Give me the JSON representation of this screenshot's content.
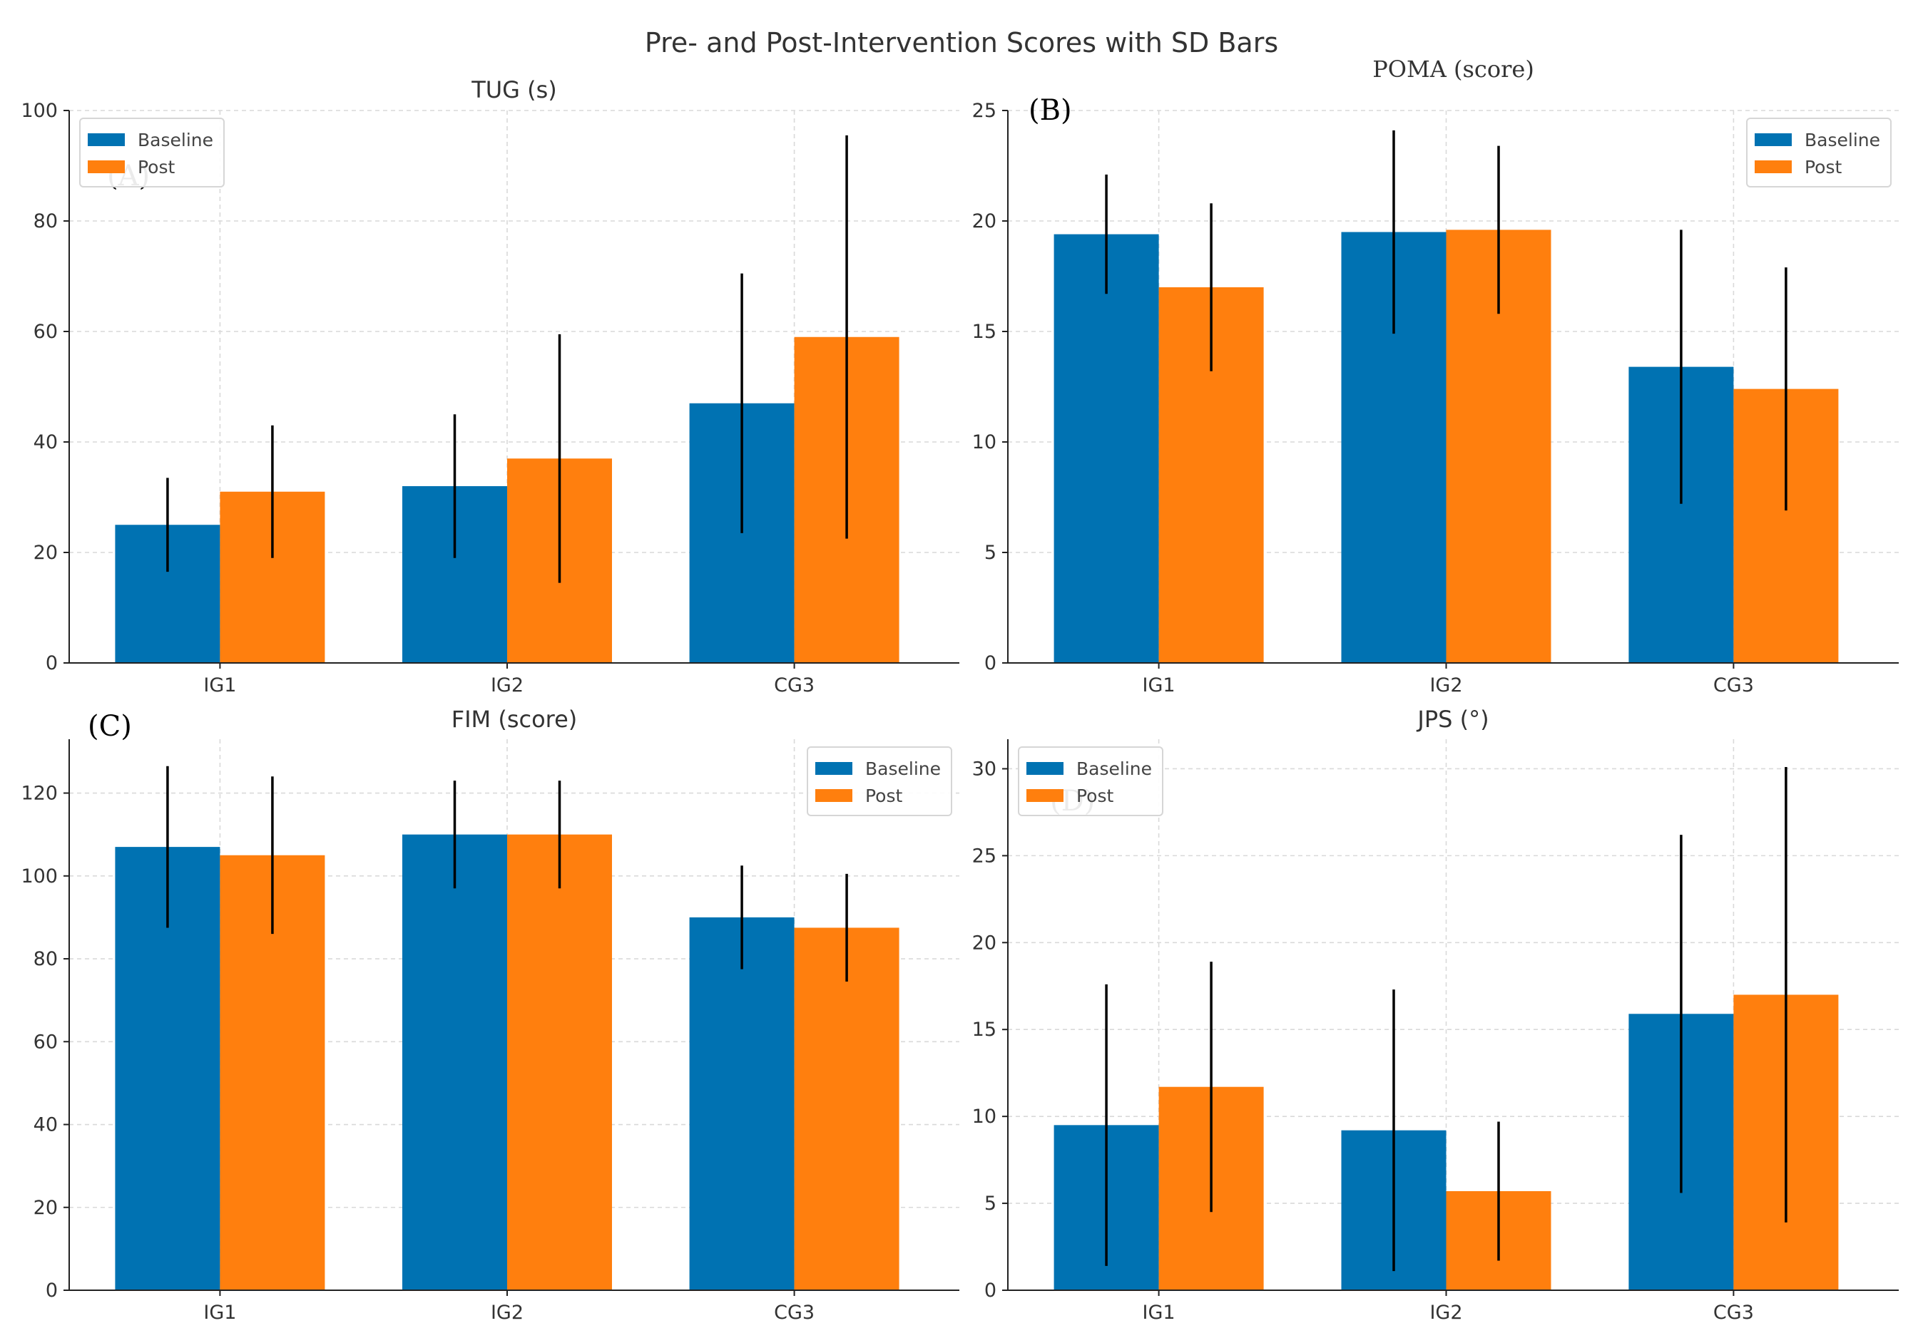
{
  "figure_title": "Pre- and Post-Intervention Scores with SD Bars",
  "colors": {
    "baseline": "#0072b2",
    "post": "#ff7f0e"
  },
  "chart_data": [
    {
      "type": "bar",
      "panel": "(A)",
      "title": "TUG (s)",
      "categories": [
        "IG1",
        "IG2",
        "CG3"
      ],
      "ylim": [
        0,
        100
      ],
      "yticks": [
        0,
        20,
        40,
        60,
        80,
        100
      ],
      "grid": true,
      "legend_position": "top-left",
      "series": [
        {
          "name": "Baseline",
          "values": [
            25,
            32,
            47
          ],
          "sd": [
            8.5,
            13,
            23.5
          ]
        },
        {
          "name": "Post",
          "values": [
            31,
            37,
            59
          ],
          "sd": [
            12,
            22.5,
            36.5
          ]
        }
      ]
    },
    {
      "type": "bar",
      "panel": "(B)",
      "title": "POMA (score)",
      "categories": [
        "IG1",
        "IG2",
        "CG3"
      ],
      "ylim": [
        0,
        25
      ],
      "yticks": [
        0,
        5,
        10,
        15,
        20,
        25
      ],
      "grid": true,
      "legend_position": "top-right",
      "series": [
        {
          "name": "Baseline",
          "values": [
            19.4,
            19.5,
            13.4
          ],
          "sd": [
            2.7,
            4.6,
            6.2
          ]
        },
        {
          "name": "Post",
          "values": [
            17,
            19.6,
            12.4
          ],
          "sd": [
            3.8,
            3.8,
            5.5
          ]
        }
      ]
    },
    {
      "type": "bar",
      "panel": "(C)",
      "title": "FIM (score)",
      "categories": [
        "IG1",
        "IG2",
        "CG3"
      ],
      "ylim": [
        0,
        133
      ],
      "yticks": [
        0,
        20,
        40,
        60,
        80,
        100,
        120
      ],
      "grid": true,
      "legend_position": "top-right",
      "series": [
        {
          "name": "Baseline",
          "values": [
            107,
            110,
            90
          ],
          "sd": [
            19.5,
            13,
            12.5
          ]
        },
        {
          "name": "Post",
          "values": [
            105,
            110,
            87.5
          ],
          "sd": [
            19,
            13,
            13
          ]
        }
      ]
    },
    {
      "type": "bar",
      "panel": "(D)",
      "title": "JPS (°)",
      "categories": [
        "IG1",
        "IG2",
        "CG3"
      ],
      "ylim": [
        0,
        31.7
      ],
      "yticks": [
        0,
        5,
        10,
        15,
        20,
        25,
        30
      ],
      "grid": true,
      "legend_position": "top-left",
      "series": [
        {
          "name": "Baseline",
          "values": [
            9.5,
            9.2,
            15.9
          ],
          "sd": [
            8.1,
            8.1,
            10.3
          ]
        },
        {
          "name": "Post",
          "values": [
            11.7,
            5.7,
            17
          ],
          "sd": [
            7.2,
            4,
            13.1
          ]
        }
      ]
    }
  ]
}
